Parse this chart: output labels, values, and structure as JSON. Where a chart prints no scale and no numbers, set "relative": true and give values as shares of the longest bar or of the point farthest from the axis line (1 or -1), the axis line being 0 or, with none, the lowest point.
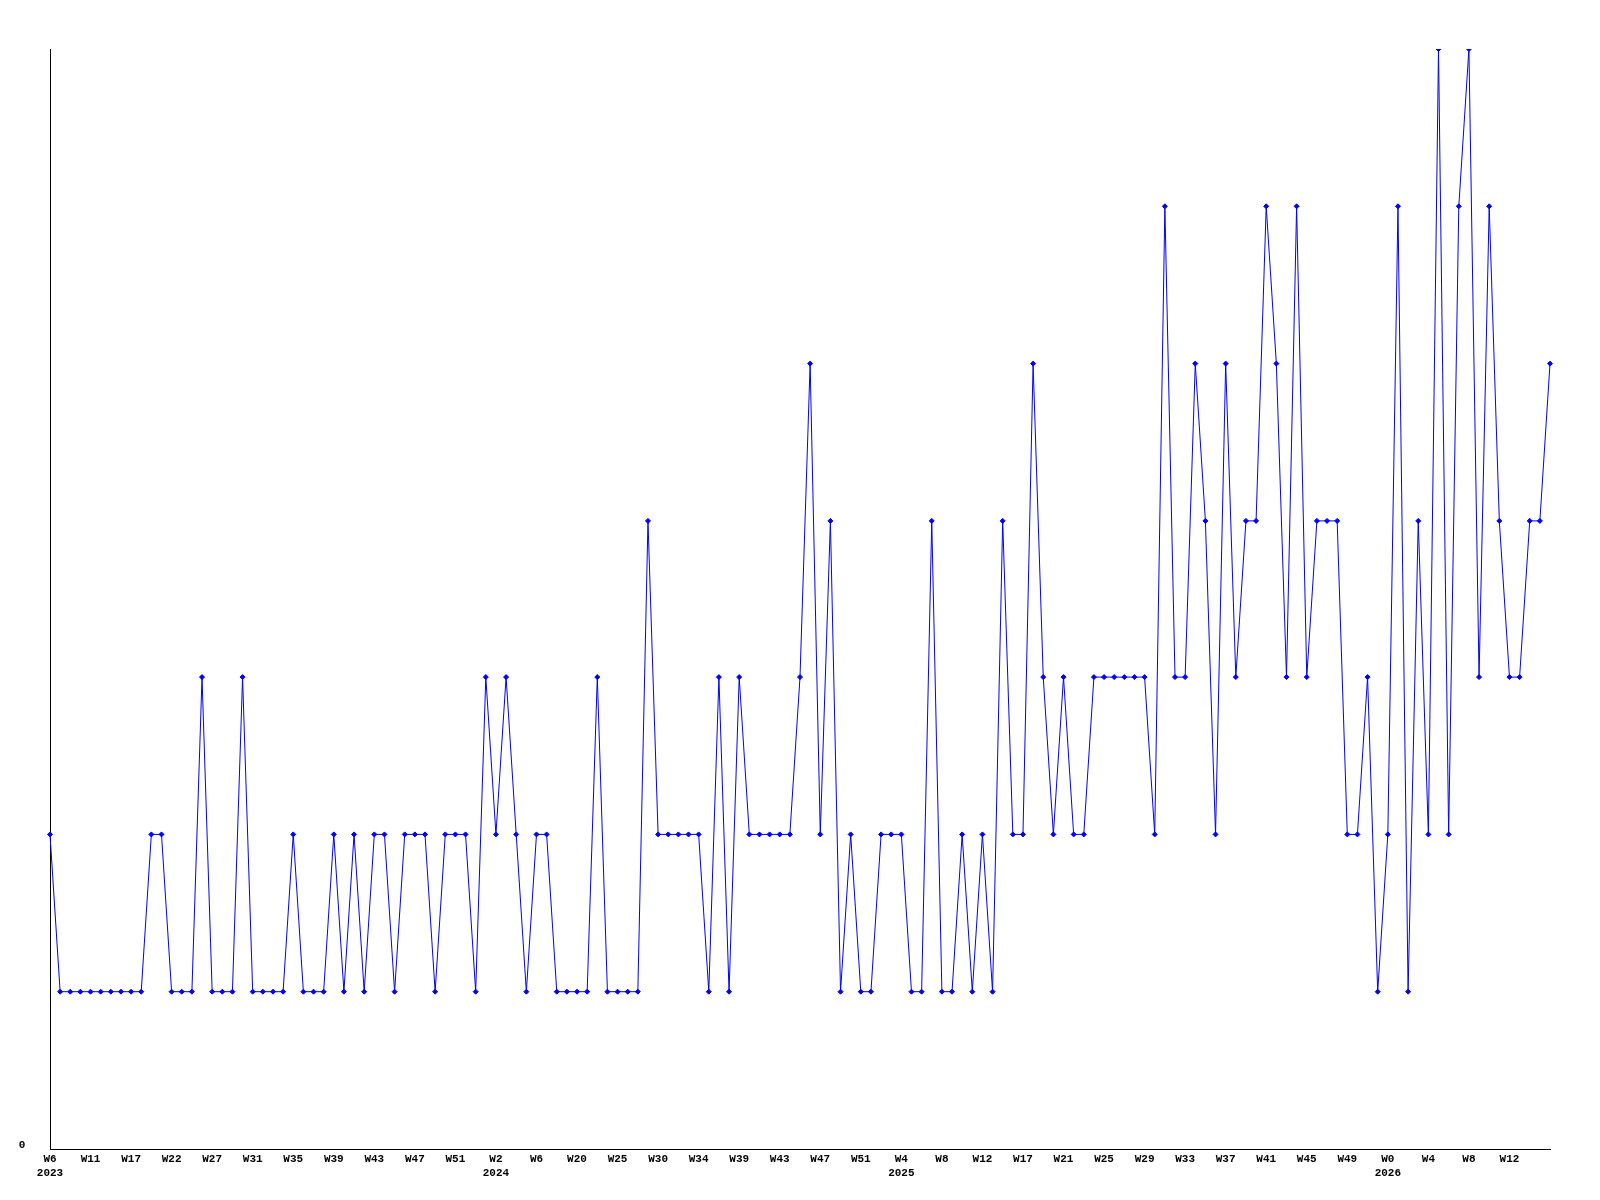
{
  "chart_data": {
    "type": "line",
    "relative": true,
    "grid": false,
    "legend": false,
    "marker": "diamond",
    "line_style": "solid",
    "color": "#0000ff",
    "annotations": [
      "0"
    ],
    "categories": [
      "W6\n2023",
      null,
      null,
      null,
      "W11",
      null,
      null,
      null,
      "W17",
      null,
      null,
      null,
      "W22",
      null,
      null,
      null,
      "W27",
      null,
      null,
      null,
      "W31",
      null,
      null,
      null,
      "W35",
      null,
      null,
      null,
      "W39",
      null,
      null,
      null,
      "W43",
      null,
      null,
      null,
      "W47",
      null,
      null,
      null,
      "W51",
      null,
      null,
      null,
      "W2\n2024",
      null,
      null,
      null,
      "W6",
      null,
      null,
      null,
      "W20",
      null,
      null,
      null,
      "W25",
      null,
      null,
      null,
      "W30",
      null,
      null,
      null,
      "W34",
      null,
      null,
      null,
      "W39",
      null,
      null,
      null,
      "W43",
      null,
      null,
      null,
      "W47",
      null,
      null,
      null,
      "W51",
      null,
      null,
      null,
      "W4\n2025",
      null,
      null,
      null,
      "W8",
      null,
      null,
      null,
      "W12",
      null,
      null,
      null,
      "W17",
      null,
      null,
      null,
      "W21",
      null,
      null,
      null,
      "W25",
      null,
      null,
      null,
      "W29",
      null,
      null,
      null,
      "W33",
      null,
      null,
      null,
      "W37",
      null,
      null,
      null,
      "W41",
      null,
      null,
      null,
      "W45",
      null,
      null,
      null,
      "W49",
      null,
      null,
      null,
      "W0\n2026",
      null,
      null,
      null,
      "W4",
      null,
      null,
      null,
      "W8",
      null,
      null,
      null,
      "W12",
      null,
      null,
      null,
      null
    ],
    "values": [
      0.286,
      0.143,
      0.143,
      0.143,
      0.143,
      0.143,
      0.143,
      0.143,
      0.143,
      0.143,
      0.286,
      0.286,
      0.143,
      0.143,
      0.143,
      0.429,
      0.143,
      0.143,
      0.143,
      0.429,
      0.143,
      0.143,
      0.143,
      0.143,
      0.286,
      0.143,
      0.143,
      0.143,
      0.286,
      0.143,
      0.286,
      0.143,
      0.286,
      0.286,
      0.143,
      0.286,
      0.286,
      0.286,
      0.143,
      0.286,
      0.286,
      0.286,
      0.143,
      0.429,
      0.286,
      0.429,
      0.286,
      0.143,
      0.286,
      0.286,
      0.143,
      0.143,
      0.143,
      0.143,
      0.429,
      0.143,
      0.143,
      0.143,
      0.143,
      0.571,
      0.286,
      0.286,
      0.286,
      0.286,
      0.286,
      0.143,
      0.429,
      0.143,
      0.429,
      0.286,
      0.286,
      0.286,
      0.286,
      0.286,
      0.429,
      0.714,
      0.286,
      0.571,
      0.143,
      0.286,
      0.143,
      0.143,
      0.286,
      0.286,
      0.286,
      0.143,
      0.143,
      0.571,
      0.143,
      0.143,
      0.286,
      0.143,
      0.286,
      0.143,
      0.571,
      0.286,
      0.286,
      0.714,
      0.429,
      0.286,
      0.429,
      0.286,
      0.286,
      0.429,
      0.429,
      0.429,
      0.429,
      0.429,
      0.429,
      0.286,
      0.857,
      0.429,
      0.429,
      0.714,
      0.571,
      0.286,
      0.714,
      0.429,
      0.571,
      0.571,
      0.857,
      0.714,
      0.429,
      0.857,
      0.429,
      0.571,
      0.571,
      0.571,
      0.286,
      0.286,
      0.429,
      0.143,
      0.286,
      0.857,
      0.143,
      0.571,
      0.286,
      1,
      0.286,
      0.857,
      1,
      0.429,
      0.857,
      0.571,
      0.429,
      0.429,
      0.571,
      0.571,
      0.714
    ]
  }
}
